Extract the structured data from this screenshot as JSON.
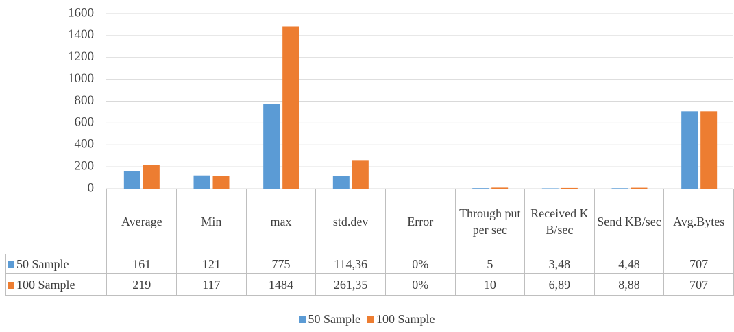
{
  "chart_data": {
    "type": "bar",
    "categories": [
      "Average",
      "Min",
      "max",
      "std.dev",
      "Error",
      "Through put per sec",
      "Received KB/sec",
      "Send KB/sec",
      "Avg.Bytes"
    ],
    "series": [
      {
        "name": "50 Sample",
        "color": "#5b9bd5",
        "values": [
          161,
          121,
          775,
          114.36,
          0,
          5,
          3.48,
          4.48,
          707
        ],
        "value_labels": [
          "161",
          "121",
          "775",
          "114,36",
          "0%",
          "5",
          "3,48",
          "4,48",
          "707"
        ]
      },
      {
        "name": "100 Sample",
        "color": "#ed7d31",
        "values": [
          219,
          117,
          1484,
          261.35,
          0,
          10,
          6.89,
          8.88,
          707
        ],
        "value_labels": [
          "219",
          "117",
          "1484",
          "261,35",
          "0%",
          "10",
          "6,89",
          "8,88",
          "707"
        ]
      }
    ],
    "ylim": [
      0,
      1600
    ],
    "yticks": [
      0,
      200,
      400,
      600,
      800,
      1000,
      1200,
      1400,
      1600
    ],
    "grid": true,
    "legend": "bottom"
  }
}
